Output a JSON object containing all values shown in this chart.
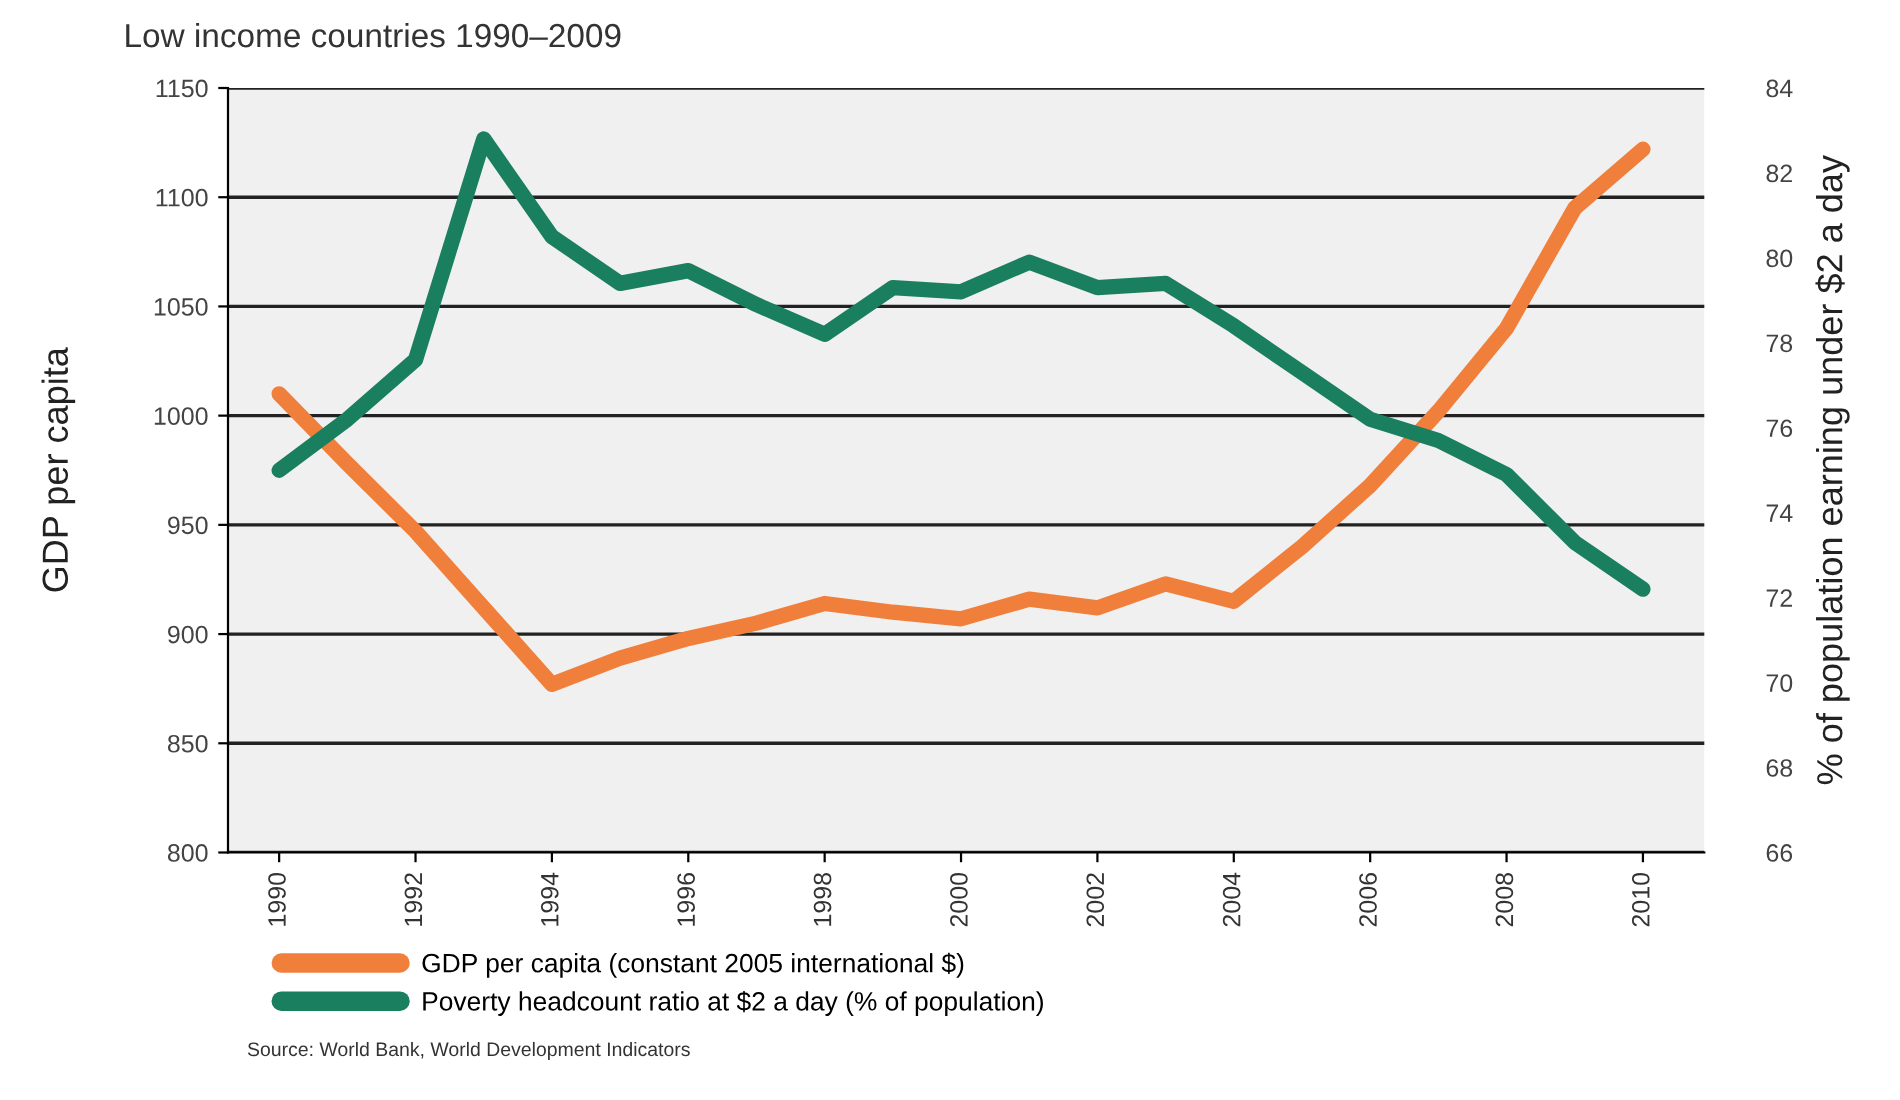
{
  "chart_data": {
    "type": "line",
    "title": "Low income countries 1990–2009",
    "ylabel": "GDP per capita",
    "y2label": "% of population earning under $2 a day",
    "x": [
      1990,
      1991,
      1992,
      1993,
      1994,
      1995,
      1996,
      1997,
      1998,
      1999,
      2000,
      2001,
      2002,
      2003,
      2004,
      2005,
      2006,
      2007,
      2008,
      2009,
      2010
    ],
    "series": [
      {
        "name": "GDP per capita (constant 2005 international $)",
        "color": "#f07f3c",
        "values": [
          1010,
          978,
          947,
          912,
          877,
          889,
          898,
          905,
          914,
          910,
          907,
          916,
          912,
          923,
          915,
          940,
          968,
          1002,
          1040,
          1095,
          1122
        ]
      },
      {
        "name": "Poverty headcount ratio at $2 a day (% of population)",
        "color": "#1a7f5e",
        "axis": "y2",
        "values": [
          75.0,
          76.2,
          77.6,
          82.8,
          80.5,
          79.4,
          79.7,
          78.9,
          78.2,
          79.3,
          79.2,
          79.9,
          79.3,
          79.4,
          78.4,
          77.3,
          76.2,
          75.7,
          74.9,
          73.3,
          72.2
        ]
      }
    ],
    "xlim": [
      1989.25,
      2010.9
    ],
    "xticks": [
      1990,
      1992,
      1994,
      1996,
      1998,
      2000,
      2002,
      2004,
      2006,
      2008,
      2010
    ],
    "ylim": [
      800,
      1150
    ],
    "yticks": [
      800,
      850,
      900,
      950,
      1000,
      1050,
      1100,
      1150
    ],
    "y2lim": [
      66,
      84
    ],
    "y2ticks": [
      66,
      68,
      70,
      72,
      74,
      76,
      78,
      80,
      82,
      84
    ],
    "grid": "y",
    "legend": "bottom",
    "marker": "none",
    "line_style": "solid",
    "annotations": [
      "Source: World Bank, World Development Indicators"
    ]
  }
}
